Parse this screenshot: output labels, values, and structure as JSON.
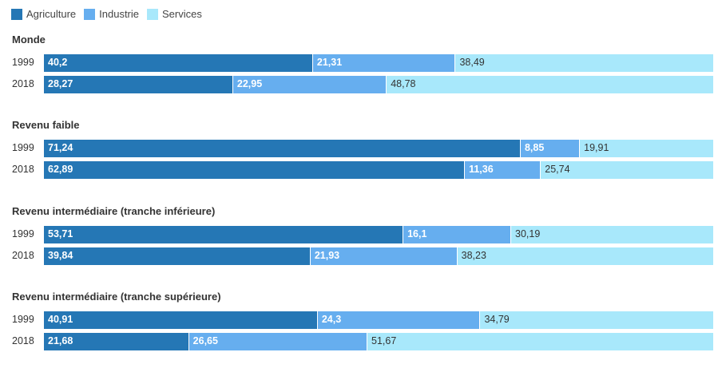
{
  "chart_data": {
    "type": "bar",
    "orientation": "horizontal",
    "stacked": true,
    "legend_position": "top-left",
    "series": [
      {
        "name": "Agriculture",
        "color": "#2577b5"
      },
      {
        "name": "Industrie",
        "color": "#66aeef"
      },
      {
        "name": "Services",
        "color": "#a8e8fb"
      }
    ],
    "groups": [
      {
        "title": "Monde",
        "rows": [
          {
            "year": "1999",
            "values": [
              40.2,
              21.31,
              38.49
            ],
            "labels": [
              "40,2",
              "21,31",
              "38,49"
            ]
          },
          {
            "year": "2018",
            "values": [
              28.27,
              22.95,
              48.78
            ],
            "labels": [
              "28,27",
              "22,95",
              "48,78"
            ]
          }
        ]
      },
      {
        "title": "Revenu faible",
        "rows": [
          {
            "year": "1999",
            "values": [
              71.24,
              8.85,
              19.91
            ],
            "labels": [
              "71,24",
              "8,85",
              "19,91"
            ]
          },
          {
            "year": "2018",
            "values": [
              62.89,
              11.36,
              25.74
            ],
            "labels": [
              "62,89",
              "11,36",
              "25,74"
            ]
          }
        ]
      },
      {
        "title": "Revenu intermédiaire (tranche inférieure)",
        "rows": [
          {
            "year": "1999",
            "values": [
              53.71,
              16.1,
              30.19
            ],
            "labels": [
              "53,71",
              "16,1",
              "30,19"
            ]
          },
          {
            "year": "2018",
            "values": [
              39.84,
              21.93,
              38.23
            ],
            "labels": [
              "39,84",
              "21,93",
              "38,23"
            ]
          }
        ]
      },
      {
        "title": "Revenu intermédiaire (tranche supérieure)",
        "rows": [
          {
            "year": "1999",
            "values": [
              40.91,
              24.3,
              34.79
            ],
            "labels": [
              "40,91",
              "24,3",
              "34,79"
            ]
          },
          {
            "year": "2018",
            "values": [
              21.68,
              26.65,
              51.67
            ],
            "labels": [
              "21,68",
              "26,65",
              "51,67"
            ]
          }
        ]
      }
    ]
  }
}
